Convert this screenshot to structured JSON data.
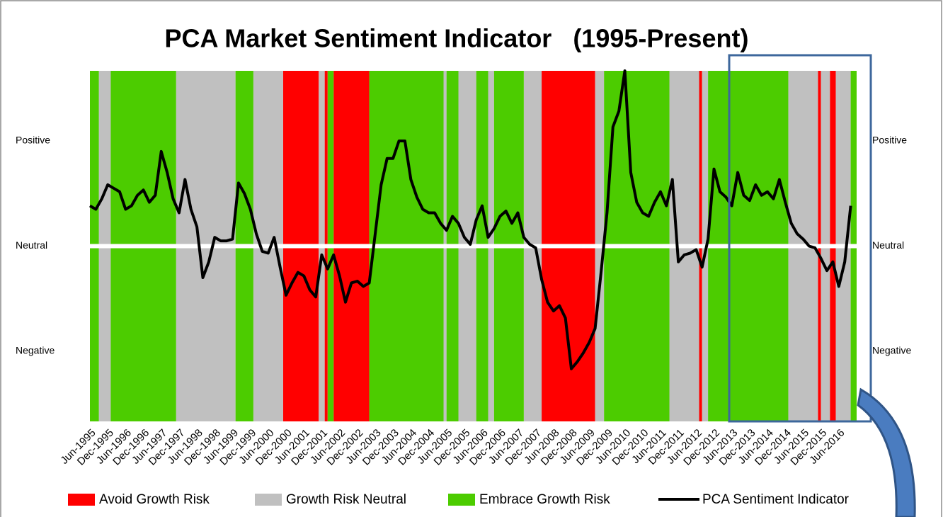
{
  "chart_data": {
    "type": "line",
    "title": "PCA Market Sentiment Indicator   (1995-Present)",
    "categories": [
      "Jun-1995",
      null,
      null,
      "Dec-1995",
      null,
      null,
      "Jun-1996",
      null,
      null,
      "Dec-1996",
      null,
      null,
      "Jun-1997",
      null,
      null,
      "Dec-1997",
      null,
      null,
      "Jun-1998",
      null,
      null,
      "Dec-1998",
      null,
      null,
      "Jun-1999",
      null,
      null,
      "Dec-1999",
      null,
      null,
      "Jun-2000",
      null,
      null,
      "Dec-2000",
      null,
      null,
      "Jun-2001",
      null,
      null,
      "Dec-2001",
      null,
      null,
      "Jun-2002",
      null,
      null,
      "Dec-2002",
      null,
      null,
      "Jun-2003",
      null,
      null,
      "Dec-2003",
      null,
      null,
      "Jun-2004",
      null,
      null,
      "Dec-2004",
      null,
      null,
      "Jun-2005",
      null,
      null,
      "Dec-2005",
      null,
      null,
      "Jun-2006",
      null,
      null,
      "Dec-2006",
      null,
      null,
      "Jun-2007",
      null,
      null,
      "Dec-2007",
      null,
      null,
      "Jun-2008",
      null,
      null,
      "Dec-2008",
      null,
      null,
      "Jun-2009",
      null,
      null,
      "Dec-2009",
      null,
      null,
      "Jun-2010",
      null,
      null,
      "Dec-2010",
      null,
      null,
      "Jun-2011",
      null,
      null,
      "Dec-2011",
      null,
      null,
      "Jun-2012",
      null,
      null,
      "Dec-2012",
      null,
      null,
      "Jun-2013",
      null,
      null,
      "Dec-2013",
      null,
      null,
      "Jun-2014",
      null,
      null,
      "Dec-2014",
      null,
      null,
      "Jun-2015",
      null,
      null,
      "Dec-2015",
      null,
      null,
      "Jun-2016",
      null,
      null
    ],
    "xlim": [
      "Jun-1995",
      "Dec-2016"
    ],
    "ylim": [
      -10,
      10
    ],
    "yticks": [
      {
        "value": 6,
        "label": "Positive"
      },
      {
        "value": 0,
        "label": "Neutral"
      },
      {
        "value": -6,
        "label": "Negative"
      }
    ],
    "series": [
      {
        "name": "Avoid Growth Risk",
        "color": "#ff0000",
        "type": "band",
        "periods": [
          [
            "Nov-2000",
            "Nov-2001"
          ],
          [
            "Jan-2002",
            "Feb-2002"
          ],
          [
            "Apr-2002",
            "Apr-2003"
          ],
          [
            "Feb-2008",
            "Aug-2009"
          ],
          [
            "Jul-2012",
            "Aug-2012"
          ],
          [
            "Nov-2015",
            "Dec-2015"
          ],
          [
            "Mar-2016",
            "May-2016"
          ]
        ]
      },
      {
        "name": "Growth Risk Neutral",
        "color": "#c0c0c0",
        "type": "band",
        "periods": [
          [
            "Sep-1995",
            "Jan-1996"
          ],
          [
            "Nov-1997",
            "Jul-1999"
          ],
          [
            "Jan-2000",
            "Nov-2000"
          ],
          [
            "Nov-2001",
            "Jan-2002"
          ],
          [
            "May-2005",
            "Jun-2005"
          ],
          [
            "Oct-2005",
            "Apr-2006"
          ],
          [
            "Aug-2006",
            "Oct-2006"
          ],
          [
            "Aug-2007",
            "Feb-2008"
          ],
          [
            "Aug-2009",
            "Nov-2009"
          ],
          [
            "Sep-2011",
            "Jul-2012"
          ],
          [
            "Aug-2012",
            "Oct-2012"
          ],
          [
            "Jan-2015",
            "Nov-2015"
          ],
          [
            "Dec-2015",
            "Mar-2016"
          ],
          [
            "May-2016",
            "Oct-2016"
          ]
        ]
      },
      {
        "name": "Embrace Growth Risk",
        "color": "#4ccc00",
        "type": "band",
        "periods": [
          [
            "Jun-1995",
            "Sep-1995"
          ],
          [
            "Jan-1996",
            "Nov-1997"
          ],
          [
            "Jul-1999",
            "Jan-2000"
          ],
          [
            "Feb-2002",
            "Apr-2002"
          ],
          [
            "Apr-2003",
            "May-2005"
          ],
          [
            "Jun-2005",
            "Oct-2005"
          ],
          [
            "Apr-2006",
            "Aug-2006"
          ],
          [
            "Oct-2006",
            "Aug-2007"
          ],
          [
            "Nov-2009",
            "Sep-2011"
          ],
          [
            "Oct-2012",
            "Jan-2015"
          ],
          [
            "Oct-2016",
            "Dec-2016"
          ]
        ]
      },
      {
        "name": "PCA Sentiment Indicator",
        "color": "#000000",
        "type": "line",
        "values": [
          2.3,
          2.1,
          2.7,
          3.5,
          3.3,
          3.1,
          2.1,
          2.3,
          2.9,
          3.2,
          2.5,
          2.9,
          5.4,
          4.2,
          2.7,
          1.9,
          3.8,
          2.1,
          1.1,
          -1.8,
          -0.9,
          0.5,
          0.3,
          0.3,
          0.4,
          3.6,
          3.0,
          2.1,
          0.7,
          -0.3,
          -0.4,
          0.5,
          -1.2,
          -2.8,
          -2.1,
          -1.5,
          -1.7,
          -2.5,
          -2.9,
          -0.5,
          -1.3,
          -0.5,
          -1.7,
          -3.2,
          -2.1,
          -2.0,
          -2.3,
          -2.1,
          0.7,
          3.5,
          5.0,
          5.0,
          6.0,
          6.0,
          3.8,
          2.8,
          2.1,
          1.9,
          1.9,
          1.3,
          0.9,
          1.7,
          1.3,
          0.5,
          0.1,
          1.5,
          2.3,
          0.5,
          1.0,
          1.7,
          2.0,
          1.3,
          1.9,
          0.5,
          0.1,
          -0.1,
          -1.9,
          -3.2,
          -3.7,
          -3.4,
          -4.1,
          -7.0,
          -6.6,
          -6.1,
          -5.5,
          -4.7,
          -1.5,
          1.9,
          6.8,
          7.7,
          10.0,
          4.2,
          2.5,
          1.9,
          1.7,
          2.5,
          3.1,
          2.3,
          3.8,
          -0.9,
          -0.5,
          -0.4,
          -0.2,
          -1.2,
          0.4,
          4.4,
          3.1,
          2.8,
          2.3,
          4.2,
          2.9,
          2.6,
          3.5,
          2.9,
          3.1,
          2.7,
          3.8,
          2.5,
          1.3,
          0.7,
          0.4,
          0,
          -0.1,
          -0.7,
          -1.4,
          -0.9,
          -2.3,
          -0.9,
          2.3
        ]
      }
    ]
  }
}
